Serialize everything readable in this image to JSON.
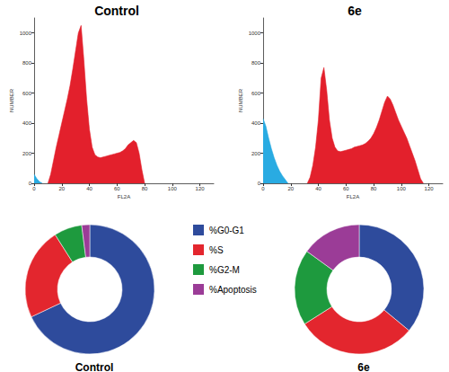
{
  "chart_data": [
    {
      "type": "area",
      "title": "Control",
      "xlabel": "FL2A",
      "ylabel": "NUMBER",
      "xlim": [
        0,
        130
      ],
      "xticks": [
        0,
        20,
        40,
        60,
        80,
        100,
        120
      ],
      "ylim": [
        0,
        1100
      ],
      "yticks": [
        0,
        200,
        400,
        600,
        800,
        1000
      ],
      "grid": false,
      "series": [
        {
          "color": "#29abe2",
          "x": [
            0,
            2,
            4,
            6
          ],
          "values": [
            60,
            30,
            10,
            0
          ]
        },
        {
          "color": "#e3202c",
          "x": [
            10,
            12,
            14,
            16,
            18,
            20,
            22,
            24,
            26,
            28,
            30,
            32,
            34,
            36,
            38,
            40,
            42,
            44,
            46,
            48,
            50,
            52,
            54,
            56,
            58,
            60,
            62,
            64,
            66,
            68,
            70,
            72,
            74,
            76,
            78,
            80
          ],
          "values": [
            0,
            60,
            150,
            240,
            320,
            400,
            480,
            560,
            650,
            760,
            880,
            1000,
            1050,
            820,
            560,
            360,
            240,
            190,
            175,
            170,
            175,
            180,
            185,
            190,
            195,
            200,
            205,
            215,
            230,
            255,
            270,
            285,
            270,
            200,
            90,
            0
          ]
        }
      ]
    },
    {
      "type": "area",
      "title": "6e",
      "xlabel": "FL2A",
      "ylabel": "NUMBER",
      "xlim": [
        0,
        130
      ],
      "xticks": [
        0,
        20,
        40,
        60,
        80,
        100,
        120
      ],
      "ylim": [
        0,
        1100
      ],
      "yticks": [
        0,
        200,
        400,
        600,
        800,
        1000
      ],
      "grid": false,
      "series": [
        {
          "color": "#29abe2",
          "x": [
            0,
            2,
            4,
            6,
            8,
            10,
            12,
            14,
            16,
            18
          ],
          "values": [
            430,
            380,
            300,
            230,
            170,
            120,
            80,
            50,
            25,
            0
          ]
        },
        {
          "color": "#e3202c",
          "x": [
            32,
            34,
            36,
            38,
            40,
            42,
            44,
            46,
            48,
            50,
            52,
            54,
            56,
            58,
            60,
            62,
            64,
            66,
            68,
            70,
            72,
            74,
            76,
            78,
            80,
            82,
            84,
            86,
            88,
            90,
            92,
            94,
            96,
            98,
            100,
            102,
            104,
            106,
            108,
            110,
            112,
            114,
            116
          ],
          "values": [
            0,
            40,
            120,
            240,
            420,
            700,
            770,
            620,
            420,
            300,
            240,
            215,
            210,
            215,
            220,
            225,
            230,
            240,
            245,
            250,
            255,
            265,
            280,
            300,
            330,
            370,
            420,
            480,
            540,
            580,
            560,
            520,
            470,
            420,
            380,
            340,
            300,
            250,
            200,
            150,
            90,
            30,
            0
          ]
        }
      ]
    },
    {
      "type": "pie",
      "title": "Control",
      "legend": "center",
      "categories": [
        "%G0-G1",
        "%S",
        "%G2-M",
        "%Apoptosis"
      ],
      "values": [
        68,
        23,
        7,
        2
      ],
      "colors": [
        "#2e4b9c",
        "#e3262e",
        "#1e9a3e",
        "#9b3c97"
      ]
    },
    {
      "type": "pie",
      "title": "6e",
      "categories": [
        "%G0-G1",
        "%S",
        "%G2-M",
        "%Apoptosis"
      ],
      "values": [
        36,
        30,
        19,
        15
      ],
      "colors": [
        "#2e4b9c",
        "#e3262e",
        "#1e9a3e",
        "#9b3c97"
      ]
    }
  ]
}
